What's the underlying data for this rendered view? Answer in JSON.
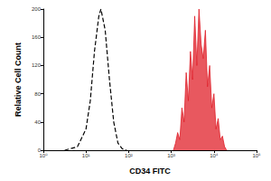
{
  "chart_data": {
    "type": "line",
    "x_label": "CD34 FITC",
    "y_label": "Relative Cell Count",
    "log": "x",
    "grid": false,
    "xlim": [
      1,
      100000
    ],
    "xticks": [
      {
        "value": 1,
        "label": "10⁰"
      },
      {
        "value": 10,
        "label": "10¹"
      },
      {
        "value": 100,
        "label": "10²"
      },
      {
        "value": 1000,
        "label": "10³"
      },
      {
        "value": 10000,
        "label": "10⁴"
      },
      {
        "value": 100000,
        "label": "10⁵"
      }
    ],
    "ylim": [
      0,
      200
    ],
    "yticks": [
      0,
      40,
      80,
      120,
      160,
      200
    ],
    "series": [
      {
        "type": "line",
        "color": "#000000",
        "line_style": "dashed",
        "x": [
          3.16,
          6.31,
          10,
          12.6,
          15.8,
          20.0,
          22.4,
          28.2,
          35.5,
          44.7,
          56.2,
          70.8,
          89.1
        ],
        "values": [
          0,
          5,
          30,
          70,
          140,
          190,
          200,
          170,
          100,
          40,
          10,
          2,
          0
        ]
      },
      {
        "type": "area",
        "color": "#e0202a",
        "line_style": "solid",
        "x": [
          1122,
          1259,
          1413,
          1585,
          1778,
          1995,
          2239,
          2512,
          2818,
          3162,
          3548,
          3981,
          4467,
          5012,
          5623,
          6310,
          7079,
          7943,
          8913,
          10000,
          11220,
          12589,
          14125,
          15849,
          17783,
          19953
        ],
        "values": [
          0,
          10,
          25,
          15,
          60,
          40,
          110,
          70,
          140,
          100,
          190,
          120,
          200,
          150,
          130,
          170,
          90,
          120,
          60,
          80,
          30,
          45,
          15,
          20,
          5,
          0
        ]
      }
    ]
  }
}
